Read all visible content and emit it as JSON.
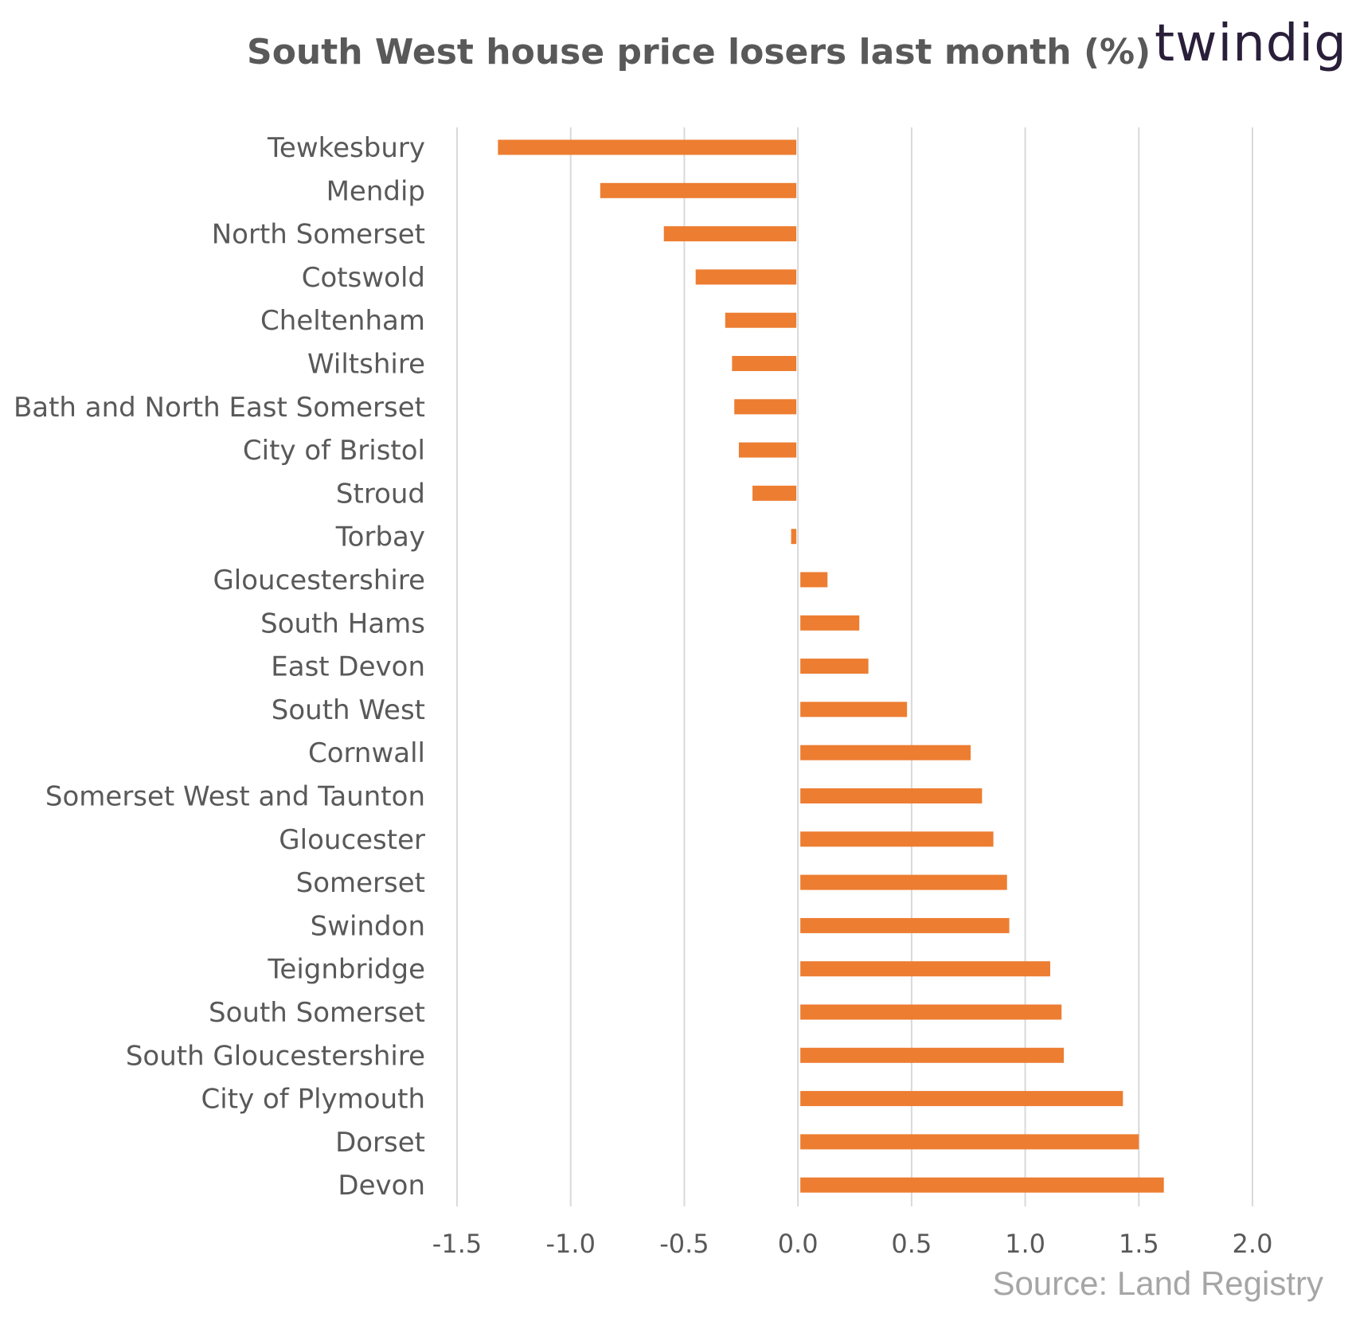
{
  "title": "South West house price losers last month (%)",
  "logo": {
    "text": "twindig",
    "accent_color": "#ed7d31",
    "text_color": "#2a1f3a"
  },
  "source": "Source: Land Registry",
  "chart_data": {
    "type": "bar",
    "orientation": "horizontal",
    "title": "South West house price losers last month (%)",
    "categories": [
      "Tewkesbury",
      "Mendip",
      "North Somerset",
      "Cotswold",
      "Cheltenham",
      "Wiltshire",
      "Bath and North East Somerset",
      "City of Bristol",
      "Stroud",
      "Torbay",
      "Gloucestershire",
      "South Hams",
      "East Devon",
      "South West",
      "Cornwall",
      "Somerset West and Taunton",
      "Gloucester",
      "Somerset",
      "Swindon",
      "Teignbridge",
      "South Somerset",
      "South Gloucestershire",
      "City of Plymouth",
      "Dorset",
      "Devon"
    ],
    "values": [
      -1.32,
      -0.87,
      -0.59,
      -0.45,
      -0.32,
      -0.29,
      -0.28,
      -0.26,
      -0.2,
      -0.03,
      0.13,
      0.27,
      0.31,
      0.48,
      0.76,
      0.81,
      0.86,
      0.92,
      0.93,
      1.11,
      1.16,
      1.17,
      1.43,
      1.5,
      1.61
    ],
    "xlim": [
      -1.5,
      2.0
    ],
    "xticks": [
      "-1.5",
      "-1.0",
      "-0.5",
      "0.0",
      "0.5",
      "1.0",
      "1.5",
      "2.0"
    ],
    "xtick_values": [
      -1.5,
      -1.0,
      -0.5,
      0.0,
      0.5,
      1.0,
      1.5,
      2.0
    ],
    "grid": true,
    "bar_color": "#ed7d31",
    "grid_color": "#d9d9d9"
  }
}
